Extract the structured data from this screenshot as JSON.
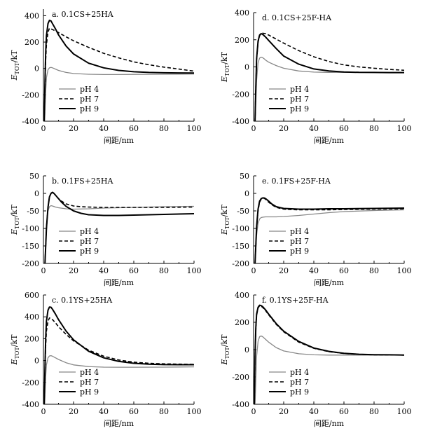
{
  "colors": {
    "ph4": "#888888",
    "ph7": "#000000",
    "ph9": "#000000",
    "axis": "#000000"
  },
  "chart_data": [
    {
      "id": "a",
      "type": "line",
      "title": "a. 0.1CS+25HA",
      "xlabel": "间距/nm",
      "ylabel_main": "E",
      "ylabel_sub": "TOT",
      "ylabel_unit": "/kT",
      "xlim": [
        0,
        100
      ],
      "ylim": [
        -400,
        450
      ],
      "xticks": [
        0,
        20,
        40,
        60,
        80,
        100
      ],
      "yticks": [
        -400,
        -200,
        0,
        200,
        400
      ],
      "xtick_labels": [
        "0",
        "20",
        "40",
        "60",
        "80",
        "100"
      ],
      "ytick_labels": [
        "-400",
        "-200",
        "0",
        "200",
        "400"
      ],
      "legend_position": "lower-center",
      "series": [
        {
          "name": "pH 4",
          "style": "ph4",
          "x": [
            0.8,
            1.5,
            2,
            3,
            4,
            5,
            6,
            8,
            10,
            15,
            20,
            30,
            40,
            50,
            60,
            80,
            100
          ],
          "y": [
            -400,
            -180,
            -70,
            -10,
            5,
            8,
            5,
            -5,
            -15,
            -30,
            -38,
            -44,
            -46,
            -46,
            -45,
            -44,
            -42
          ]
        },
        {
          "name": "pH 7",
          "style": "ph7",
          "x": [
            0.5,
            1,
            1.5,
            2,
            3,
            4,
            5,
            6,
            8,
            10,
            15,
            20,
            30,
            40,
            50,
            60,
            70,
            80,
            90,
            100
          ],
          "y": [
            -400,
            -150,
            60,
            180,
            275,
            305,
            300,
            295,
            285,
            272,
            240,
            210,
            160,
            115,
            80,
            50,
            28,
            10,
            -5,
            -20
          ]
        },
        {
          "name": "pH 9",
          "style": "ph9",
          "x": [
            0.5,
            1,
            1.5,
            2,
            3,
            4,
            5,
            6,
            8,
            10,
            15,
            20,
            30,
            40,
            50,
            60,
            70,
            80,
            90,
            100
          ],
          "y": [
            -400,
            -100,
            120,
            250,
            340,
            365,
            360,
            340,
            300,
            255,
            170,
            110,
            40,
            5,
            -15,
            -25,
            -30,
            -33,
            -34,
            -35
          ]
        }
      ]
    },
    {
      "id": "d",
      "type": "line",
      "title": "d. 0.1CS+25F-HA",
      "xlabel": "间距/nm",
      "ylabel_main": "E",
      "ylabel_sub": "TOT",
      "ylabel_unit": "/kT",
      "xlim": [
        0,
        100
      ],
      "ylim": [
        -400,
        400
      ],
      "xticks": [
        0,
        20,
        40,
        60,
        80,
        100
      ],
      "yticks": [
        -400,
        -200,
        0,
        200,
        400
      ],
      "xtick_labels": [
        "0",
        "20",
        "40",
        "60",
        "80",
        "100"
      ],
      "ytick_labels": [
        "-400",
        "-200",
        "0",
        "200",
        "400"
      ],
      "legend_position": "lower-center",
      "series": [
        {
          "name": "pH 4",
          "style": "ph4",
          "x": [
            1,
            2,
            3,
            4,
            5,
            6,
            7,
            8,
            10,
            15,
            20,
            30,
            40,
            50,
            60,
            80,
            100
          ],
          "y": [
            -400,
            -100,
            30,
            65,
            72,
            68,
            60,
            50,
            35,
            10,
            -10,
            -30,
            -38,
            -40,
            -40,
            -40,
            -40
          ]
        },
        {
          "name": "pH 7",
          "style": "ph7",
          "x": [
            1,
            1.5,
            2,
            3,
            4,
            5,
            6,
            8,
            10,
            15,
            20,
            30,
            40,
            50,
            60,
            70,
            80,
            90,
            100
          ],
          "y": [
            -400,
            -150,
            50,
            180,
            230,
            245,
            248,
            245,
            235,
            205,
            175,
            120,
            75,
            40,
            15,
            0,
            -10,
            -18,
            -25
          ]
        },
        {
          "name": "pH 9",
          "style": "ph9",
          "x": [
            1,
            1.5,
            2,
            3,
            4,
            5,
            6,
            8,
            10,
            15,
            20,
            30,
            40,
            50,
            60,
            70,
            80,
            90,
            100
          ],
          "y": [
            -400,
            -150,
            60,
            190,
            235,
            245,
            240,
            220,
            195,
            135,
            80,
            20,
            -15,
            -30,
            -37,
            -40,
            -41,
            -42,
            -42
          ]
        }
      ]
    },
    {
      "id": "b",
      "type": "line",
      "title": "b. 0.1FS+25HA",
      "xlabel": "间距/nm",
      "ylabel_main": "E",
      "ylabel_sub": "TOT",
      "ylabel_unit": "/kT",
      "xlim": [
        0,
        100
      ],
      "ylim": [
        -200,
        50
      ],
      "xticks": [
        0,
        20,
        40,
        60,
        80,
        100
      ],
      "yticks": [
        -200,
        -150,
        -100,
        -50,
        0,
        50
      ],
      "xtick_labels": [
        "0",
        "20",
        "40",
        "60",
        "80",
        "100"
      ],
      "ytick_labels": [
        "-200",
        "-150",
        "-100",
        "-50",
        "0",
        "50"
      ],
      "legend_position": "lower-center",
      "series": [
        {
          "name": "pH 4",
          "style": "ph4",
          "x": [
            1,
            2,
            3,
            4,
            5,
            6,
            8,
            10,
            15,
            20,
            30,
            40,
            50,
            60,
            80,
            100
          ],
          "y": [
            -200,
            -90,
            -50,
            -38,
            -35,
            -36,
            -39,
            -41,
            -44,
            -45,
            -44,
            -42,
            -41,
            -40,
            -38,
            -37
          ]
        },
        {
          "name": "pH 7",
          "style": "ph7",
          "x": [
            1,
            2,
            3,
            4,
            5,
            6,
            7,
            8,
            10,
            12,
            15,
            20,
            25,
            30,
            40,
            50,
            60,
            80,
            100
          ],
          "y": [
            -200,
            -100,
            -40,
            -10,
            0,
            2,
            0,
            -5,
            -15,
            -22,
            -30,
            -36,
            -38,
            -39,
            -40,
            -40,
            -40,
            -40,
            -39
          ]
        },
        {
          "name": "pH 9",
          "style": "ph9",
          "x": [
            1,
            2,
            3,
            4,
            5,
            6,
            7,
            8,
            10,
            12,
            15,
            20,
            25,
            30,
            40,
            50,
            60,
            80,
            100
          ],
          "y": [
            -200,
            -100,
            -40,
            -10,
            0,
            3,
            0,
            -5,
            -15,
            -25,
            -37,
            -50,
            -57,
            -61,
            -63,
            -63,
            -62,
            -60,
            -58
          ]
        }
      ]
    },
    {
      "id": "e",
      "type": "line",
      "title": "e. 0.1FS+25F-HA",
      "xlabel": "间距/nm",
      "ylabel_main": "E",
      "ylabel_sub": "TOT",
      "ylabel_unit": "/kT",
      "xlim": [
        0,
        100
      ],
      "ylim": [
        -200,
        50
      ],
      "xticks": [
        0,
        20,
        40,
        60,
        80,
        100
      ],
      "yticks": [
        -200,
        -150,
        -100,
        -50,
        0,
        50
      ],
      "xtick_labels": [
        "0",
        "20",
        "40",
        "60",
        "80",
        "100"
      ],
      "ytick_labels": [
        "-200",
        "-150",
        "-100",
        "-50",
        "0",
        "50"
      ],
      "legend_position": "lower-center",
      "series": [
        {
          "name": "pH 4",
          "style": "ph4",
          "x": [
            1,
            2,
            3,
            4,
            5,
            6,
            8,
            10,
            15,
            20,
            30,
            40,
            50,
            60,
            80,
            100
          ],
          "y": [
            -200,
            -120,
            -85,
            -73,
            -69,
            -68,
            -67,
            -67,
            -67,
            -66,
            -63,
            -59,
            -55,
            -52,
            -49,
            -47
          ]
        },
        {
          "name": "pH 7",
          "style": "ph7",
          "x": [
            1,
            2,
            3,
            4,
            5,
            6,
            7,
            8,
            10,
            12,
            15,
            20,
            30,
            40,
            50,
            60,
            80,
            100
          ],
          "y": [
            -200,
            -100,
            -50,
            -25,
            -17,
            -14,
            -14,
            -17,
            -25,
            -32,
            -40,
            -45,
            -47,
            -47,
            -47,
            -46,
            -45,
            -44
          ]
        },
        {
          "name": "pH 9",
          "style": "ph9",
          "x": [
            1,
            2,
            3,
            4,
            5,
            6,
            7,
            8,
            10,
            12,
            15,
            20,
            30,
            40,
            50,
            60,
            80,
            100
          ],
          "y": [
            -200,
            -95,
            -45,
            -22,
            -15,
            -13,
            -13,
            -15,
            -22,
            -30,
            -38,
            -43,
            -45,
            -45,
            -44,
            -44,
            -43,
            -42
          ]
        }
      ]
    },
    {
      "id": "c",
      "type": "line",
      "title": "c. 0.1YS+25HA",
      "xlabel": "间距/nm",
      "ylabel_main": "E",
      "ylabel_sub": "TOT",
      "ylabel_unit": "/kT",
      "xlim": [
        0,
        100
      ],
      "ylim": [
        -400,
        600
      ],
      "xticks": [
        0,
        20,
        40,
        60,
        80,
        100
      ],
      "yticks": [
        -400,
        -200,
        0,
        200,
        400,
        600
      ],
      "xtick_labels": [
        "0",
        "20",
        "40",
        "60",
        "80",
        "100"
      ],
      "ytick_labels": [
        "-400",
        "-200",
        "0",
        "200",
        "400",
        "600"
      ],
      "legend_position": "lower-center",
      "series": [
        {
          "name": "pH 4",
          "style": "ph4",
          "x": [
            0.8,
            1.5,
            2,
            3,
            4,
            5,
            6,
            8,
            10,
            15,
            20,
            30,
            40,
            50,
            60,
            80,
            100
          ],
          "y": [
            -400,
            -150,
            -40,
            25,
            42,
            45,
            40,
            25,
            10,
            -20,
            -40,
            -55,
            -60,
            -61,
            -61,
            -60,
            -58
          ]
        },
        {
          "name": "pH 7",
          "style": "ph7",
          "x": [
            0.5,
            1,
            1.5,
            2,
            3,
            4,
            5,
            6,
            8,
            10,
            15,
            20,
            30,
            40,
            50,
            60,
            70,
            80,
            90,
            100
          ],
          "y": [
            -400,
            -100,
            130,
            270,
            360,
            390,
            385,
            375,
            345,
            310,
            240,
            180,
            95,
            40,
            5,
            -15,
            -25,
            -30,
            -33,
            -35
          ]
        },
        {
          "name": "pH 9",
          "style": "ph9",
          "x": [
            0.5,
            1,
            1.5,
            2,
            3,
            4,
            5,
            6,
            8,
            10,
            15,
            20,
            30,
            40,
            50,
            60,
            70,
            80,
            90,
            100
          ],
          "y": [
            -400,
            -60,
            200,
            360,
            460,
            490,
            488,
            470,
            425,
            375,
            270,
            190,
            85,
            25,
            -8,
            -25,
            -33,
            -37,
            -38,
            -38
          ]
        }
      ]
    },
    {
      "id": "f",
      "type": "line",
      "title": "f. 0.1YS+25F-HA",
      "xlabel": "间距/nm",
      "ylabel_main": "E",
      "ylabel_sub": "TOT",
      "ylabel_unit": "/kT",
      "xlim": [
        0,
        100
      ],
      "ylim": [
        -400,
        400
      ],
      "xticks": [
        0,
        20,
        40,
        60,
        80,
        100
      ],
      "yticks": [
        -400,
        -200,
        0,
        200,
        400
      ],
      "xtick_labels": [
        "0",
        "20",
        "40",
        "60",
        "80",
        "100"
      ],
      "ytick_labels": [
        "-400",
        "-200",
        "0",
        "200",
        "400"
      ],
      "legend_position": "lower-center",
      "series": [
        {
          "name": "pH 4",
          "style": "ph4",
          "x": [
            1,
            2,
            3,
            4,
            5,
            6,
            8,
            10,
            15,
            20,
            30,
            40,
            50,
            60,
            80,
            100
          ],
          "y": [
            -400,
            -50,
            60,
            95,
            100,
            95,
            75,
            55,
            15,
            -10,
            -30,
            -38,
            -40,
            -40,
            -40,
            -40
          ]
        },
        {
          "name": "pH 7",
          "style": "ph7",
          "x": [
            0.5,
            1,
            1.5,
            2,
            3,
            4,
            5,
            6,
            8,
            10,
            15,
            20,
            30,
            40,
            50,
            60,
            70,
            80,
            90,
            100
          ],
          "y": [
            -400,
            -50,
            150,
            250,
            305,
            320,
            318,
            310,
            285,
            255,
            185,
            130,
            55,
            10,
            -15,
            -28,
            -35,
            -38,
            -39,
            -40
          ]
        },
        {
          "name": "pH 9",
          "style": "ph9",
          "x": [
            0.5,
            1,
            1.5,
            2,
            3,
            4,
            5,
            6,
            8,
            10,
            15,
            20,
            30,
            40,
            50,
            60,
            70,
            80,
            90,
            100
          ],
          "y": [
            -400,
            -40,
            160,
            260,
            310,
            325,
            322,
            315,
            290,
            260,
            190,
            135,
            60,
            12,
            -13,
            -27,
            -34,
            -37,
            -38,
            -40
          ]
        }
      ]
    }
  ]
}
